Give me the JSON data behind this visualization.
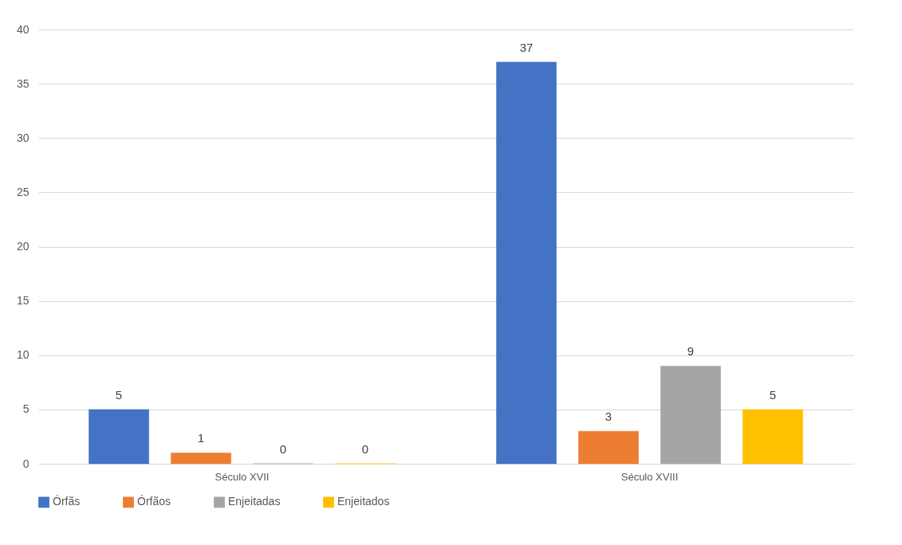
{
  "chart_data": {
    "type": "bar",
    "categories": [
      "Século XVII",
      "Século XVIII"
    ],
    "series": [
      {
        "name": "Órfãs",
        "color": "#4472c4",
        "values": [
          5,
          37
        ],
        "value_labels": [
          "5",
          "37"
        ]
      },
      {
        "name": "Órfãos",
        "color": "#ed7d31",
        "values": [
          1,
          3
        ],
        "value_labels": [
          "1",
          "3"
        ]
      },
      {
        "name": "Enjeitadas",
        "color": "#a5a5a5",
        "values": [
          0,
          9
        ],
        "value_labels": [
          "0",
          "9"
        ]
      },
      {
        "name": "Enjeitados",
        "color": "#ffc000",
        "values": [
          0,
          5
        ],
        "value_labels": [
          "0",
          "5"
        ]
      }
    ],
    "ylim": [
      0,
      40
    ],
    "yticks": [
      0,
      5,
      10,
      15,
      20,
      25,
      30,
      35,
      40
    ],
    "grid": "y",
    "legend": "bottom"
  }
}
